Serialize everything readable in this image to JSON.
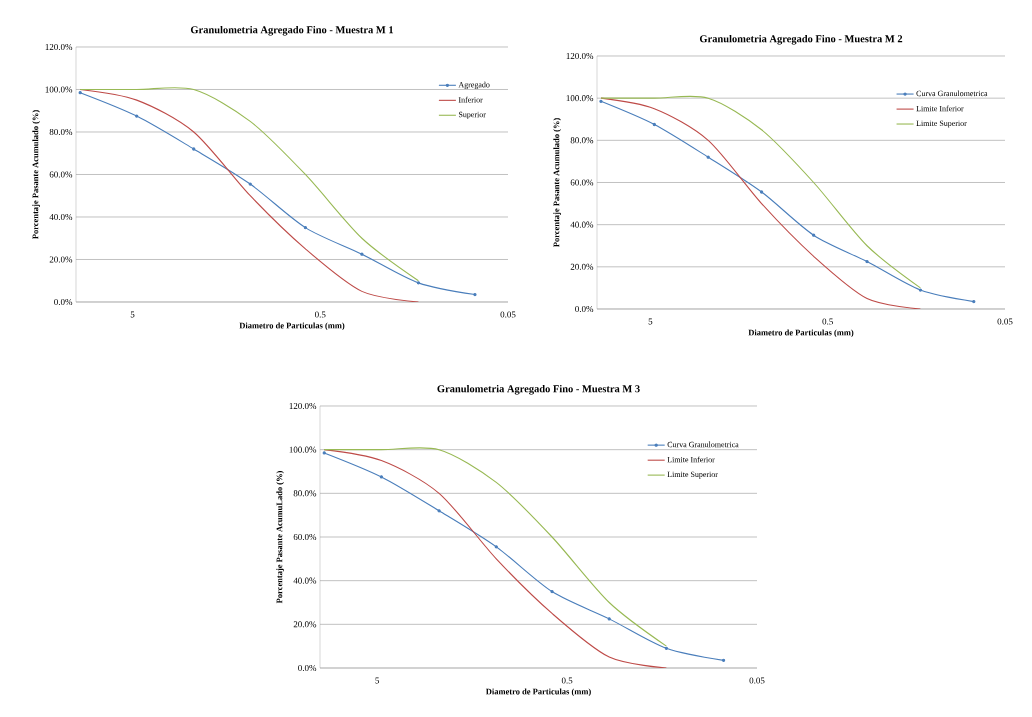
{
  "chart_data": [
    {
      "type": "line",
      "title": "Granulometria  Agregado Fino - Muestra M 1",
      "xlabel": "Diametro de Particulas (mm)",
      "ylabel": "Porcentaje  Pasante Acumulado (%)",
      "log": "x",
      "xlim": [
        10,
        0.05
      ],
      "xticks": [
        5,
        0.5,
        0.05
      ],
      "ylim": [
        0,
        120
      ],
      "yticks": [
        {
          "value": 0,
          "label": "0.0%"
        },
        {
          "value": 20,
          "label": "20.0%"
        },
        {
          "value": 40,
          "label": "40.0%"
        },
        {
          "value": 60,
          "label": "60.0%"
        },
        {
          "value": 80,
          "label": "80.0%"
        },
        {
          "value": 100,
          "label": "100.0%"
        },
        {
          "value": 120,
          "label": "120.0%"
        }
      ],
      "grid": "y",
      "legend": "top right",
      "series": [
        {
          "name": "Agregado",
          "color": "#4a7ebb",
          "marker": "circle",
          "x": [
            9.5,
            4.75,
            2.36,
            1.18,
            0.6,
            0.3,
            0.15,
            0.075
          ],
          "values": [
            98.5,
            87.5,
            72,
            55.5,
            35,
            22.5,
            9,
            3.5
          ]
        },
        {
          "name": "Inferior",
          "color": "#be4b48",
          "marker": "none",
          "x": [
            9.5,
            4.75,
            2.36,
            1.18,
            0.6,
            0.3,
            0.15
          ],
          "values": [
            100,
            95,
            80,
            50,
            25,
            5,
            0
          ]
        },
        {
          "name": "Superior",
          "color": "#98b954",
          "marker": "none",
          "x": [
            9.5,
            4.75,
            2.36,
            1.18,
            0.6,
            0.3,
            0.15
          ],
          "values": [
            100,
            100,
            100,
            85,
            60,
            30,
            10
          ]
        }
      ]
    },
    {
      "type": "line",
      "title": "Granulometria  Agregado Fino - Muestra M 2",
      "xlabel": "Diametro de Particulas (mm)",
      "ylabel": "Porcentaje  Pasante Acumulado (%)",
      "log": "x",
      "xlim": [
        10,
        0.05
      ],
      "xticks": [
        5,
        0.5,
        0.05
      ],
      "ylim": [
        0,
        120
      ],
      "yticks": [
        {
          "value": 0,
          "label": "0.0%"
        },
        {
          "value": 20,
          "label": "20.0%"
        },
        {
          "value": 40,
          "label": "40.0%"
        },
        {
          "value": 60,
          "label": "60.0%"
        },
        {
          "value": 80,
          "label": "80.0%"
        },
        {
          "value": 100,
          "label": "100.0%"
        },
        {
          "value": 120,
          "label": "120.0%"
        }
      ],
      "grid": "y",
      "legend": "top right",
      "series": [
        {
          "name": "Curva Granulometrica",
          "color": "#4a7ebb",
          "marker": "circle",
          "x": [
            9.5,
            4.75,
            2.36,
            1.18,
            0.6,
            0.3,
            0.15,
            0.075
          ],
          "values": [
            98.5,
            87.5,
            72,
            55.5,
            35,
            22.5,
            9,
            3.5
          ]
        },
        {
          "name": "Limite Inferior",
          "color": "#be4b48",
          "marker": "none",
          "x": [
            9.5,
            4.75,
            2.36,
            1.18,
            0.6,
            0.3,
            0.15
          ],
          "values": [
            100,
            95,
            80,
            50,
            25,
            5,
            0
          ]
        },
        {
          "name": "Limite Superior",
          "color": "#98b954",
          "marker": "none",
          "x": [
            9.5,
            4.75,
            2.36,
            1.18,
            0.6,
            0.3,
            0.15
          ],
          "values": [
            100,
            100,
            100,
            85,
            60,
            30,
            10
          ]
        }
      ]
    },
    {
      "type": "line",
      "title": "Granulometria  Agregado Fino - Muestra M 3",
      "xlabel": "Diametro de Particulas (mm)",
      "ylabel": "Porcentaje  Pasante AcumuLado (%)",
      "log": "x",
      "xlim": [
        10,
        0.05
      ],
      "xticks": [
        5,
        0.5,
        0.05
      ],
      "ylim": [
        0,
        120
      ],
      "yticks": [
        {
          "value": 0,
          "label": "0.0%"
        },
        {
          "value": 20,
          "label": "20.0%"
        },
        {
          "value": 40,
          "label": "40.0%"
        },
        {
          "value": 60,
          "label": "60.0%"
        },
        {
          "value": 80,
          "label": "80.0%"
        },
        {
          "value": 100,
          "label": "100.0%"
        },
        {
          "value": 120,
          "label": "120.0%"
        }
      ],
      "grid": "y",
      "legend": "top right",
      "series": [
        {
          "name": "Curva Granulometrica",
          "color": "#4a7ebb",
          "marker": "circle",
          "x": [
            9.5,
            4.75,
            2.36,
            1.18,
            0.6,
            0.3,
            0.15,
            0.075
          ],
          "values": [
            98.5,
            87.5,
            72,
            55.5,
            35,
            22.5,
            9,
            3.5
          ]
        },
        {
          "name": "Limite Inferior",
          "color": "#be4b48",
          "marker": "none",
          "x": [
            9.5,
            4.75,
            2.36,
            1.18,
            0.6,
            0.3,
            0.15
          ],
          "values": [
            100,
            95,
            80,
            50,
            25,
            5,
            0
          ]
        },
        {
          "name": "Limite Superior",
          "color": "#98b954",
          "marker": "none",
          "x": [
            9.5,
            4.75,
            2.36,
            1.18,
            0.6,
            0.3,
            0.15
          ],
          "values": [
            100,
            100,
            100,
            85,
            60,
            30,
            10
          ]
        }
      ]
    }
  ]
}
